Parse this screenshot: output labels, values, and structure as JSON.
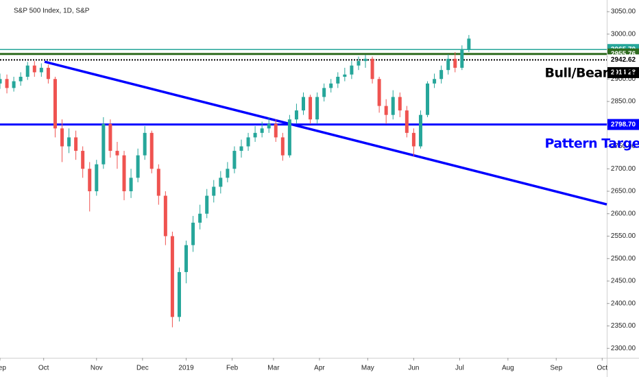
{
  "chart_data": {
    "type": "candlestick",
    "title": "S&P 500 Index, 1D, S&P",
    "x": [
      0,
      3,
      6,
      9,
      12,
      15,
      18,
      21,
      24,
      27,
      30,
      33,
      36,
      39,
      42,
      45,
      48,
      51,
      54,
      57,
      60,
      63,
      66,
      69,
      72,
      75,
      78,
      81,
      84,
      87,
      90,
      93,
      96,
      99,
      102,
      105,
      108,
      111,
      114,
      117,
      120,
      123,
      126,
      129,
      132,
      135,
      138,
      141,
      144,
      147,
      150,
      153,
      156,
      159,
      162,
      165,
      168,
      171,
      174,
      177,
      180,
      183,
      186,
      189,
      192,
      195,
      198,
      201,
      204
    ],
    "open": [
      2890,
      2900,
      2880,
      2895,
      2905,
      2930,
      2915,
      2925,
      2900,
      2790,
      2750,
      2770,
      2740,
      2700,
      2650,
      2710,
      2800,
      2740,
      2730,
      2650,
      2680,
      2730,
      2780,
      2700,
      2640,
      2550,
      2370,
      2470,
      2530,
      2580,
      2600,
      2640,
      2660,
      2680,
      2700,
      2740,
      2750,
      2770,
      2780,
      2790,
      2800,
      2770,
      2730,
      2810,
      2830,
      2860,
      2810,
      2860,
      2880,
      2890,
      2905,
      2910,
      2930,
      2940,
      2945,
      2900,
      2840,
      2820,
      2860,
      2830,
      2780,
      2750,
      2820,
      2890,
      2900,
      2920,
      2945,
      2925,
      2965
    ],
    "high": [
      2912,
      2910,
      2905,
      2915,
      2938,
      2940,
      2935,
      2932,
      2905,
      2810,
      2790,
      2785,
      2750,
      2715,
      2720,
      2815,
      2810,
      2760,
      2740,
      2700,
      2745,
      2795,
      2785,
      2710,
      2650,
      2560,
      2480,
      2540,
      2595,
      2620,
      2655,
      2675,
      2695,
      2715,
      2750,
      2765,
      2780,
      2795,
      2805,
      2815,
      2810,
      2780,
      2820,
      2845,
      2870,
      2865,
      2870,
      2890,
      2900,
      2915,
      2925,
      2940,
      2950,
      2954,
      2950,
      2905,
      2855,
      2875,
      2870,
      2840,
      2790,
      2830,
      2895,
      2912,
      2930,
      2955,
      2960,
      2975,
      2998
    ],
    "low": [
      2878,
      2868,
      2872,
      2885,
      2898,
      2905,
      2905,
      2890,
      2770,
      2715,
      2735,
      2720,
      2680,
      2605,
      2640,
      2700,
      2725,
      2700,
      2630,
      2635,
      2670,
      2720,
      2690,
      2620,
      2530,
      2347,
      2360,
      2445,
      2515,
      2565,
      2590,
      2625,
      2645,
      2670,
      2690,
      2725,
      2740,
      2760,
      2770,
      2780,
      2760,
      2718,
      2725,
      2800,
      2820,
      2800,
      2800,
      2850,
      2870,
      2880,
      2895,
      2900,
      2920,
      2925,
      2890,
      2825,
      2800,
      2810,
      2815,
      2770,
      2728,
      2745,
      2815,
      2880,
      2890,
      2910,
      2915,
      2920,
      2960
    ],
    "close": [
      2900,
      2880,
      2895,
      2905,
      2930,
      2915,
      2925,
      2900,
      2790,
      2750,
      2770,
      2740,
      2700,
      2650,
      2710,
      2800,
      2740,
      2730,
      2650,
      2680,
      2730,
      2780,
      2700,
      2640,
      2550,
      2370,
      2470,
      2530,
      2580,
      2600,
      2640,
      2660,
      2680,
      2700,
      2740,
      2750,
      2770,
      2780,
      2790,
      2800,
      2770,
      2730,
      2810,
      2830,
      2860,
      2810,
      2860,
      2880,
      2890,
      2905,
      2910,
      2930,
      2940,
      2945,
      2900,
      2840,
      2820,
      2860,
      2830,
      2780,
      2750,
      2820,
      2890,
      2900,
      2920,
      2945,
      2925,
      2965,
      2990
    ],
    "up_color": "#26a69a",
    "down_color": "#ef5350",
    "xlim": [
      0,
      264
    ],
    "xticks": [
      {
        "value": 0,
        "label": "Sep"
      },
      {
        "value": 19,
        "label": "Oct"
      },
      {
        "value": 42,
        "label": "Nov"
      },
      {
        "value": 62,
        "label": "Dec"
      },
      {
        "value": 81,
        "label": "2019"
      },
      {
        "value": 101,
        "label": "Feb"
      },
      {
        "value": 119,
        "label": "Mar"
      },
      {
        "value": 139,
        "label": "Apr"
      },
      {
        "value": 160,
        "label": "May"
      },
      {
        "value": 180,
        "label": "Jun"
      },
      {
        "value": 200,
        "label": "Jul"
      },
      {
        "value": 221,
        "label": "Aug"
      },
      {
        "value": 242,
        "label": "Sep"
      },
      {
        "value": 262,
        "label": "Oct"
      }
    ],
    "ylim": [
      2279,
      3076
    ],
    "yticks": [
      {
        "value": 2300,
        "label": "2300.00"
      },
      {
        "value": 2350,
        "label": "2350.00"
      },
      {
        "value": 2400,
        "label": "2400.00"
      },
      {
        "value": 2450,
        "label": "2450.00"
      },
      {
        "value": 2500,
        "label": "2500.00"
      },
      {
        "value": 2550,
        "label": "2550.00"
      },
      {
        "value": 2600,
        "label": "2600.00"
      },
      {
        "value": 2650,
        "label": "2650.00"
      },
      {
        "value": 2700,
        "label": "2700.00"
      },
      {
        "value": 2750,
        "label": "2750.00"
      },
      {
        "value": 2800,
        "label": "2800.00"
      },
      {
        "value": 2850,
        "label": "2850.00"
      },
      {
        "value": 2900,
        "label": "2900.00"
      },
      {
        "value": 2950,
        "label": "2950.00"
      },
      {
        "value": 3000,
        "label": "3000.00"
      },
      {
        "value": 3050,
        "label": "3050.00"
      }
    ],
    "grid": false,
    "levels": [
      {
        "value": 2965.7,
        "label": "2965.70",
        "color": "#26a69a",
        "text_color": "#ffffff",
        "style": "solid"
      },
      {
        "value": 2955.76,
        "label": "2955.76",
        "color": "#2e6b1f",
        "text_color": "#ffffff",
        "style": "thick"
      },
      {
        "value": 2942.62,
        "label": "2942.62",
        "color": "#000000",
        "text_color": "#000000",
        "style": "dotted"
      },
      {
        "value": 2914.28,
        "label": "2914.28",
        "color": "#000000",
        "text_color": "#ffffff",
        "style": "none"
      },
      {
        "value": 2798.7,
        "label": "2798.70",
        "color": "#0000ff",
        "text_color": "#ffffff",
        "style": "thick"
      }
    ],
    "trendline": {
      "x": [
        19.4,
        264
      ],
      "y": [
        2938.5,
        2620.8
      ],
      "color": "#0000ff"
    },
    "annotations": [
      {
        "text": "Bull/Bear Line",
        "x": 237,
        "y": 2913,
        "color": "#000000"
      },
      {
        "text": "Pattern Target Zone",
        "x": 237,
        "y": 2755,
        "color": "#0000ff"
      }
    ]
  }
}
